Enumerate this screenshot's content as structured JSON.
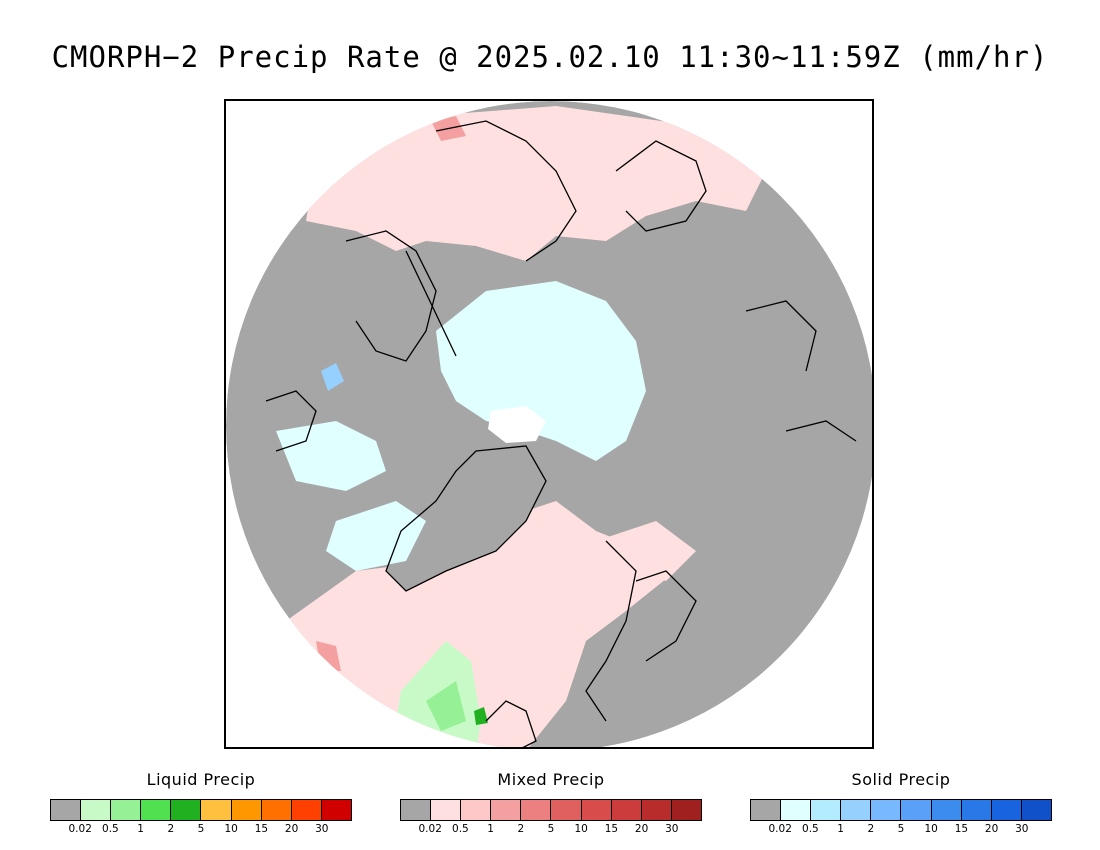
{
  "title": "CMORPH−2 Precip Rate @ 2025.02.10 11:30~11:59Z (mm/hr)",
  "legends": [
    {
      "id": "liquid",
      "title": "Liquid Precip",
      "colors": [
        "#a6a6a6",
        "#c8fac8",
        "#96f096",
        "#50e050",
        "#20b020",
        "#ffc040",
        "#ff9800",
        "#ff7000",
        "#ff4000",
        "#d00000"
      ],
      "ticks": [
        "0.02",
        "0.5",
        "1",
        "2",
        "5",
        "10",
        "15",
        "20",
        "30"
      ]
    },
    {
      "id": "mixed",
      "title": "Mixed Precip",
      "colors": [
        "#a6a6a6",
        "#ffe0e0",
        "#ffc8c8",
        "#f4a0a0",
        "#ec8080",
        "#e06060",
        "#d84c4c",
        "#cc3c3c",
        "#b82c2c",
        "#a02020"
      ],
      "ticks": [
        "0.02",
        "0.5",
        "1",
        "2",
        "5",
        "10",
        "15",
        "20",
        "30"
      ]
    },
    {
      "id": "solid",
      "title": "Solid Precip",
      "colors": [
        "#a6a6a6",
        "#e0ffff",
        "#b4ecff",
        "#96d0ff",
        "#78b8ff",
        "#5aa0f8",
        "#3c8cf0",
        "#2878e8",
        "#1864e0",
        "#1050c8"
      ],
      "ticks": [
        "0.02",
        "0.5",
        "1",
        "2",
        "5",
        "10",
        "15",
        "20",
        "30"
      ]
    }
  ],
  "map": {
    "projection": "polar stereographic, North Pole",
    "colors": {
      "no_precip": "#a6a6a6",
      "mixed_light": "#ffe0e0",
      "mixed_moderate": "#f4a0a0",
      "mixed_heavy": "#e06060",
      "solid_light": "#e0ffff",
      "solid_moderate": "#96d0ff",
      "liquid_light": "#c8fac8",
      "liquid_moderate": "#96f096",
      "liquid_heavy": "#20b020",
      "coastline": "#000000"
    }
  }
}
